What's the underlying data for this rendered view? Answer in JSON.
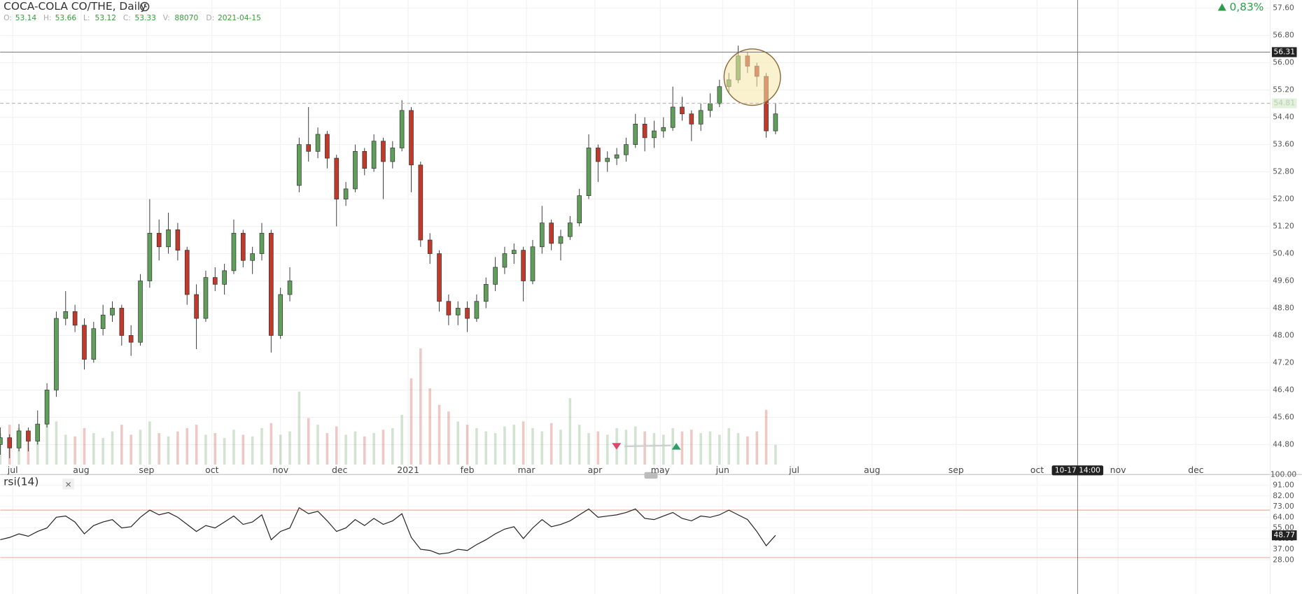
{
  "header": {
    "title": "COCA-COLA CO/THE, Daily",
    "fields": [
      {
        "label": "O:",
        "value": 53.14
      },
      {
        "label": "H:",
        "value": 53.66
      },
      {
        "label": "L:",
        "value": 53.12
      },
      {
        "label": "C:",
        "value": 53.33
      },
      {
        "label": "V:",
        "value": 88070
      },
      {
        "label": "D:",
        "value": "2021-04-15"
      }
    ],
    "change": "0,83%"
  },
  "chart_data": [
    {
      "type": "candlestick",
      "up_color": "#5f9f5a",
      "down_color": "#c0392b",
      "x": [
        0,
        3,
        6,
        9,
        12,
        15,
        18,
        21,
        24,
        27,
        30,
        33,
        36,
        39,
        42,
        45,
        48,
        51,
        54,
        57,
        60,
        63,
        66,
        69,
        72,
        75,
        78,
        81,
        84,
        87,
        90,
        93,
        96,
        99,
        102,
        105,
        108,
        111,
        114,
        117,
        120,
        123,
        126,
        129,
        132,
        135,
        138,
        141,
        144,
        147,
        150,
        153,
        156,
        159,
        162,
        165,
        168,
        171,
        174,
        177,
        180,
        183,
        186,
        189,
        192,
        195,
        198,
        201,
        204,
        207,
        210,
        213,
        216,
        219,
        222,
        225,
        228,
        231,
        234,
        237,
        240,
        243,
        246,
        249
      ],
      "ohlc": [
        [
          44.8,
          45.3,
          44.5,
          45.0
        ],
        [
          45.0,
          45.1,
          44.4,
          44.7
        ],
        [
          44.7,
          45.4,
          44.6,
          45.2
        ],
        [
          45.2,
          45.3,
          44.6,
          44.9
        ],
        [
          44.9,
          45.8,
          44.8,
          45.4
        ],
        [
          45.4,
          46.6,
          45.3,
          46.4
        ],
        [
          46.4,
          48.7,
          46.2,
          48.5
        ],
        [
          48.5,
          49.3,
          48.3,
          48.7
        ],
        [
          48.7,
          48.9,
          48.1,
          48.3
        ],
        [
          48.3,
          48.5,
          47.0,
          47.3
        ],
        [
          47.3,
          48.4,
          47.2,
          48.2
        ],
        [
          48.2,
          48.9,
          48.0,
          48.6
        ],
        [
          48.6,
          49.0,
          48.4,
          48.8
        ],
        [
          48.8,
          48.9,
          47.7,
          48.0
        ],
        [
          48.0,
          48.3,
          47.4,
          47.8
        ],
        [
          47.8,
          49.8,
          47.7,
          49.6
        ],
        [
          49.6,
          52.0,
          49.4,
          51.0
        ],
        [
          51.0,
          51.4,
          50.2,
          50.6
        ],
        [
          50.6,
          51.6,
          50.4,
          51.1
        ],
        [
          51.1,
          51.3,
          50.2,
          50.5
        ],
        [
          50.5,
          50.6,
          48.9,
          49.2
        ],
        [
          49.2,
          49.5,
          47.6,
          48.5
        ],
        [
          48.5,
          49.9,
          48.4,
          49.7
        ],
        [
          49.7,
          50.0,
          49.3,
          49.5
        ],
        [
          49.5,
          50.1,
          49.2,
          49.9
        ],
        [
          49.9,
          51.4,
          49.8,
          51.0
        ],
        [
          51.0,
          51.1,
          50.0,
          50.2
        ],
        [
          50.2,
          50.6,
          49.8,
          50.4
        ],
        [
          50.4,
          51.3,
          50.2,
          51.0
        ],
        [
          51.0,
          51.1,
          47.5,
          48.0
        ],
        [
          48.0,
          49.4,
          47.9,
          49.2
        ],
        [
          49.2,
          50.0,
          49.0,
          49.6
        ],
        [
          52.4,
          53.8,
          52.2,
          53.6
        ],
        [
          53.6,
          54.7,
          53.1,
          53.4
        ],
        [
          53.4,
          54.1,
          53.2,
          53.9
        ],
        [
          53.9,
          54.0,
          52.9,
          53.2
        ],
        [
          53.2,
          53.3,
          51.2,
          52.0
        ],
        [
          52.0,
          52.5,
          51.8,
          52.3
        ],
        [
          52.3,
          53.6,
          52.2,
          53.4
        ],
        [
          53.4,
          53.5,
          52.7,
          52.9
        ],
        [
          52.9,
          53.9,
          52.8,
          53.7
        ],
        [
          53.7,
          53.8,
          52.0,
          53.1
        ],
        [
          53.1,
          53.7,
          52.9,
          53.5
        ],
        [
          53.5,
          54.9,
          53.4,
          54.6
        ],
        [
          54.6,
          54.7,
          52.2,
          53.0
        ],
        [
          53.0,
          53.1,
          50.6,
          50.8
        ],
        [
          50.8,
          51.0,
          50.1,
          50.4
        ],
        [
          50.4,
          50.5,
          48.7,
          49.0
        ],
        [
          49.0,
          49.2,
          48.3,
          48.6
        ],
        [
          48.6,
          49.0,
          48.3,
          48.8
        ],
        [
          48.8,
          49.0,
          48.1,
          48.5
        ],
        [
          48.5,
          49.2,
          48.4,
          49.0
        ],
        [
          49.0,
          49.7,
          48.8,
          49.5
        ],
        [
          49.5,
          50.3,
          49.3,
          50.0
        ],
        [
          50.0,
          50.6,
          49.8,
          50.4
        ],
        [
          50.4,
          50.7,
          50.1,
          50.5
        ],
        [
          50.5,
          50.6,
          49.0,
          49.6
        ],
        [
          49.6,
          50.8,
          49.5,
          50.6
        ],
        [
          50.6,
          51.8,
          50.4,
          51.3
        ],
        [
          51.3,
          51.4,
          50.5,
          50.7
        ],
        [
          50.7,
          51.1,
          50.2,
          50.9
        ],
        [
          50.9,
          51.5,
          50.8,
          51.3
        ],
        [
          51.3,
          52.3,
          51.2,
          52.1
        ],
        [
          52.1,
          53.9,
          52.0,
          53.5
        ],
        [
          53.5,
          53.6,
          52.5,
          53.1
        ],
        [
          53.1,
          53.4,
          52.8,
          53.2
        ],
        [
          53.2,
          53.5,
          53.0,
          53.3
        ],
        [
          53.3,
          53.8,
          53.1,
          53.6
        ],
        [
          53.6,
          54.5,
          53.5,
          54.2
        ],
        [
          54.2,
          54.4,
          53.4,
          53.8
        ],
        [
          53.8,
          54.3,
          53.5,
          54.0
        ],
        [
          54.0,
          54.4,
          53.8,
          54.1
        ],
        [
          54.1,
          55.3,
          54.0,
          54.7
        ],
        [
          54.7,
          55.0,
          54.3,
          54.5
        ],
        [
          54.5,
          54.6,
          53.7,
          54.2
        ],
        [
          54.2,
          54.8,
          54.0,
          54.6
        ],
        [
          54.6,
          55.1,
          54.4,
          54.8
        ],
        [
          54.8,
          55.5,
          54.7,
          55.3
        ],
        [
          55.3,
          55.7,
          55.1,
          55.5
        ],
        [
          55.5,
          56.5,
          55.4,
          56.2
        ],
        [
          56.2,
          56.3,
          55.7,
          55.9
        ],
        [
          55.9,
          56.0,
          55.3,
          55.6
        ],
        [
          55.6,
          55.7,
          53.8,
          54.0
        ],
        [
          54.0,
          54.8,
          53.9,
          54.5
        ]
      ],
      "volume": [
        95000,
        120000,
        110000,
        80000,
        100000,
        165000,
        130000,
        90000,
        85000,
        110000,
        95000,
        80000,
        100000,
        120000,
        90000,
        105000,
        130000,
        95000,
        85000,
        100000,
        110000,
        120000,
        90000,
        95000,
        80000,
        105000,
        90000,
        85000,
        110000,
        125000,
        90000,
        100000,
        220000,
        140000,
        120000,
        95000,
        115000,
        90000,
        100000,
        85000,
        95000,
        105000,
        110000,
        150000,
        260000,
        350000,
        230000,
        180000,
        160000,
        130000,
        120000,
        110000,
        100000,
        95000,
        115000,
        120000,
        130000,
        110000,
        100000,
        125000,
        105000,
        200000,
        120000,
        95000,
        100000,
        90000,
        110000,
        105000,
        115000,
        100000,
        95000,
        90000,
        110000,
        100000,
        105000,
        95000,
        100000,
        90000,
        110000,
        95000,
        85000,
        100000,
        165000,
        60000
      ],
      "xlim": [
        0,
        418
      ],
      "xticks": [
        {
          "value": 4,
          "label": "jul"
        },
        {
          "value": 26,
          "label": "aug"
        },
        {
          "value": 47,
          "label": "sep"
        },
        {
          "value": 68,
          "label": "oct"
        },
        {
          "value": 90,
          "label": "nov"
        },
        {
          "value": 109,
          "label": "dec"
        },
        {
          "value": 131,
          "label": "2021"
        },
        {
          "value": 150,
          "label": "feb"
        },
        {
          "value": 169,
          "label": "mar"
        },
        {
          "value": 191,
          "label": "apr"
        },
        {
          "value": 212,
          "label": "may"
        },
        {
          "value": 232,
          "label": "jun"
        },
        {
          "value": 255,
          "label": "jul"
        },
        {
          "value": 280,
          "label": "aug"
        },
        {
          "value": 307,
          "label": "sep"
        },
        {
          "value": 333,
          "label": "oct"
        },
        {
          "value": 359,
          "label": "nov"
        },
        {
          "value": 384,
          "label": "dec"
        }
      ],
      "ylim": [
        43.92,
        57.84
      ],
      "yticks": [
        {
          "value": 57.6,
          "label": "57.60"
        },
        {
          "value": 56.8,
          "label": "56.80"
        },
        {
          "value": 56.0,
          "label": "56.00"
        },
        {
          "value": 55.2,
          "label": "55.20"
        },
        {
          "value": 54.4,
          "label": "54.40"
        },
        {
          "value": 53.6,
          "label": "53.60"
        },
        {
          "value": 52.8,
          "label": "52.80"
        },
        {
          "value": 52.0,
          "label": "52.00"
        },
        {
          "value": 51.2,
          "label": "51.20"
        },
        {
          "value": 50.4,
          "label": "50.40"
        },
        {
          "value": 49.6,
          "label": "49.60"
        },
        {
          "value": 48.8,
          "label": "48.80"
        },
        {
          "value": 48.0,
          "label": "48.00"
        },
        {
          "value": 47.2,
          "label": "47.20"
        },
        {
          "value": 46.4,
          "label": "46.40"
        },
        {
          "value": 45.6,
          "label": "45.60"
        },
        {
          "value": 44.8,
          "label": "44.80"
        }
      ],
      "crosshair": {
        "price": 56.31,
        "time": {
          "value": 346,
          "label": "10-17 14:00"
        }
      },
      "last_price": 54.81
    },
    {
      "type": "line",
      "title": "rsi(14)",
      "color": "#222222",
      "level_color": "#e6b2a2",
      "x": [
        0,
        3,
        6,
        9,
        12,
        15,
        18,
        21,
        24,
        27,
        30,
        33,
        36,
        39,
        42,
        45,
        48,
        51,
        54,
        57,
        60,
        63,
        66,
        69,
        72,
        75,
        78,
        81,
        84,
        87,
        90,
        93,
        96,
        99,
        102,
        105,
        108,
        111,
        114,
        117,
        120,
        123,
        126,
        129,
        132,
        135,
        138,
        141,
        144,
        147,
        150,
        153,
        156,
        159,
        162,
        165,
        168,
        171,
        174,
        177,
        180,
        183,
        186,
        189,
        192,
        195,
        198,
        201,
        204,
        207,
        210,
        213,
        216,
        219,
        222,
        225,
        228,
        231,
        234,
        237,
        240,
        243,
        246,
        249
      ],
      "values": [
        45,
        47,
        50,
        48,
        52,
        55,
        64,
        65,
        60,
        50,
        57,
        60,
        62,
        55,
        56,
        64,
        70,
        66,
        68,
        64,
        58,
        52,
        57,
        55,
        60,
        65,
        58,
        60,
        66,
        45,
        52,
        55,
        72,
        67,
        69,
        61,
        52,
        55,
        62,
        57,
        63,
        58,
        61,
        67,
        47,
        37,
        36,
        33,
        34,
        37,
        36,
        41,
        45,
        50,
        54,
        56,
        46,
        55,
        62,
        56,
        58,
        61,
        66,
        71,
        64,
        65,
        66,
        68,
        71,
        63,
        62,
        65,
        68,
        63,
        61,
        65,
        64,
        66,
        70,
        66,
        62,
        52,
        40,
        48.77
      ],
      "xlim": [
        0,
        418
      ],
      "ylim": [
        0,
        100
      ],
      "yticks": [
        {
          "value": 100,
          "label": "100.00"
        },
        {
          "value": 91,
          "label": "91.00"
        },
        {
          "value": 82,
          "label": "82.00"
        },
        {
          "value": 73,
          "label": "73.00"
        },
        {
          "value": 64,
          "label": "64.00"
        },
        {
          "value": 55,
          "label": "55.00"
        },
        {
          "value": 46,
          "label": "46.00"
        },
        {
          "value": 37,
          "label": "37.00"
        },
        {
          "value": 28,
          "label": "28.00"
        }
      ],
      "levels": [
        70,
        30
      ]
    }
  ]
}
